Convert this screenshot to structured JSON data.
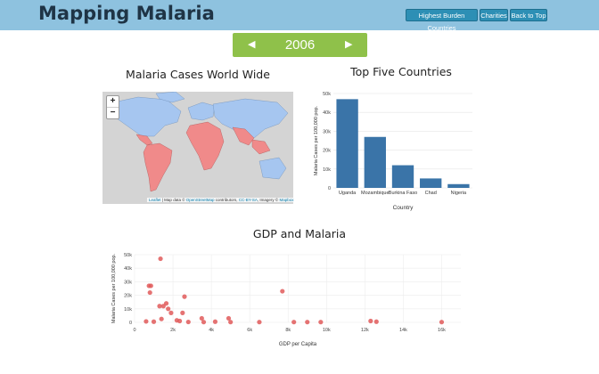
{
  "header": {
    "brand": "Mapping Malaria",
    "nav": [
      "Highest Burden Countries",
      "Charities",
      "Back to Top"
    ]
  },
  "year_selector": {
    "year": "2006",
    "prev_label": "◀",
    "next_label": "▶"
  },
  "map_section": {
    "title": "Malaria Cases World Wide",
    "zoom_in": "+",
    "zoom_out": "−",
    "attribution": {
      "leaflet": "Leaflet",
      "map_data": " | Map data © ",
      "osm": "OpenStreetMap",
      "contributors": " contributors, ",
      "license": "CC-BY-SA",
      "imagery": ", Imagery © ",
      "mapbox": "Mapbox"
    },
    "colors": {
      "ocean": "#d4d4d4",
      "low": "#a6c6f0",
      "high": "#f08a8a"
    }
  },
  "bar_section": {
    "title": "Top Five Countries"
  },
  "scatter_section": {
    "title": "GDP and Malaria"
  },
  "chart_data": [
    {
      "type": "bar",
      "title": "Top Five Countries",
      "xlabel": "Country",
      "ylabel": "Malaria Cases per 100,000 pop.",
      "categories": [
        "Uganda",
        "Mozambique",
        "Burkina Faso",
        "Chad",
        "Nigeria"
      ],
      "values": [
        47000,
        27000,
        12000,
        5000,
        2000
      ],
      "ylim": [
        0,
        50000
      ],
      "yticks": [
        0,
        10000,
        20000,
        30000,
        40000,
        50000
      ],
      "ytick_labels": [
        "0",
        "10k",
        "20k",
        "30k",
        "40k",
        "50k"
      ],
      "color": "#3a74a8"
    },
    {
      "type": "scatter",
      "title": "GDP and Malaria",
      "xlabel": "GDP per Capita",
      "ylabel": "Malaria Cases per 100,000 pop.",
      "xlim": [
        0,
        17000
      ],
      "ylim": [
        0,
        50000
      ],
      "xticks": [
        0,
        2000,
        4000,
        6000,
        8000,
        10000,
        12000,
        14000,
        16000
      ],
      "xtick_labels": [
        "0",
        "2k",
        "4k",
        "6k",
        "8k",
        "10k",
        "12k",
        "14k",
        "16k"
      ],
      "yticks": [
        0,
        10000,
        20000,
        30000,
        40000,
        50000
      ],
      "ytick_labels": [
        "0",
        "10k",
        "20k",
        "30k",
        "40k",
        "50k"
      ],
      "color": "#e05a5a",
      "points": [
        [
          1350,
          47000
        ],
        [
          750,
          27000
        ],
        [
          850,
          27000
        ],
        [
          800,
          22000
        ],
        [
          1300,
          12000
        ],
        [
          1500,
          12000
        ],
        [
          1650,
          14000
        ],
        [
          1750,
          10000
        ],
        [
          1900,
          7000
        ],
        [
          2600,
          19000
        ],
        [
          2500,
          7000
        ],
        [
          2200,
          1500
        ],
        [
          2350,
          1000
        ],
        [
          600,
          700
        ],
        [
          1000,
          500
        ],
        [
          1400,
          2500
        ],
        [
          2800,
          300
        ],
        [
          3500,
          3000
        ],
        [
          4200,
          500
        ],
        [
          3600,
          200
        ],
        [
          4900,
          3000
        ],
        [
          5000,
          200
        ],
        [
          6500,
          200
        ],
        [
          7700,
          23000
        ],
        [
          8300,
          200
        ],
        [
          9000,
          200
        ],
        [
          9700,
          200
        ],
        [
          12300,
          1000
        ],
        [
          12600,
          500
        ],
        [
          16000,
          200
        ]
      ]
    }
  ]
}
